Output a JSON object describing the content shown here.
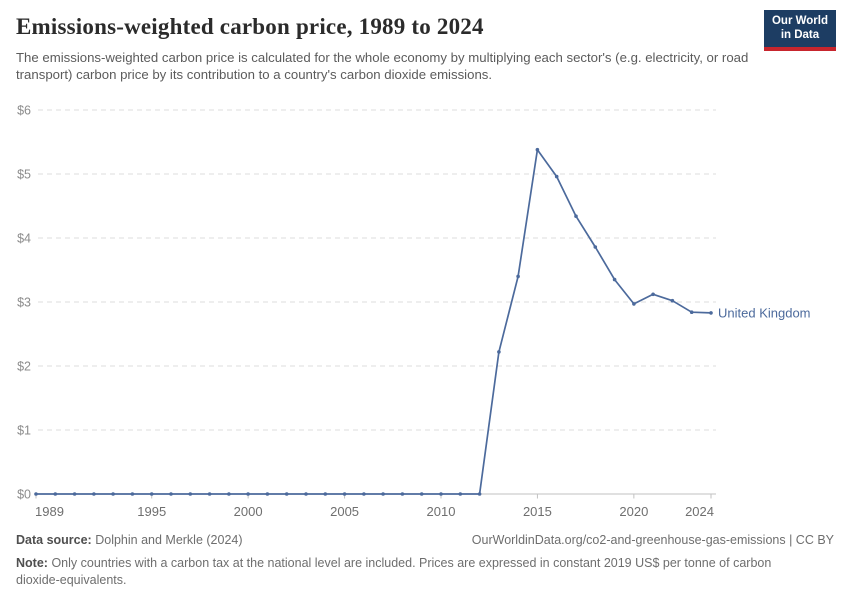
{
  "header": {
    "title": "Emissions-weighted carbon price, 1989 to 2024",
    "subtitle": "The emissions-weighted carbon price is calculated for the whole economy by multiplying each sector's (e.g. electricity, or road transport) carbon price by its contribution to a country's carbon dioxide emissions."
  },
  "logo": {
    "line1": "Our World",
    "line2": "in Data",
    "bg_color": "#1d3d63",
    "accent_color": "#c7252d"
  },
  "chart_data": {
    "type": "line",
    "title": "Emissions-weighted carbon price, 1989 to 2024",
    "xlabel": "",
    "ylabel": "",
    "xlim": [
      1989,
      2024
    ],
    "ylim": [
      0,
      6
    ],
    "grid": "horizontal-dashed",
    "legend_position": "end-of-line-label",
    "x": [
      1989,
      1990,
      1991,
      1992,
      1993,
      1994,
      1995,
      1996,
      1997,
      1998,
      1999,
      2000,
      2001,
      2002,
      2003,
      2004,
      2005,
      2006,
      2007,
      2008,
      2009,
      2010,
      2011,
      2012,
      2013,
      2014,
      2015,
      2016,
      2017,
      2018,
      2019,
      2020,
      2021,
      2022,
      2023,
      2024
    ],
    "series": [
      {
        "name": "United Kingdom",
        "color": "#4c6a9c",
        "values": [
          0,
          0,
          0,
          0,
          0,
          0,
          0,
          0,
          0,
          0,
          0,
          0,
          0,
          0,
          0,
          0,
          0,
          0,
          0,
          0,
          0,
          0,
          0,
          0,
          2.22,
          3.4,
          5.38,
          4.96,
          4.34,
          3.86,
          3.35,
          2.97,
          3.12,
          3.02,
          2.84,
          2.83
        ]
      }
    ],
    "xticks": [
      1989,
      1995,
      2000,
      2005,
      2010,
      2015,
      2020,
      2024
    ],
    "ytick_labels": [
      "$0",
      "$1",
      "$2",
      "$3",
      "$4",
      "$5",
      "$6"
    ],
    "grid_color": "#dedede",
    "axis_color": "#c2c2c2",
    "ytick_label_color": "#8c8c8c",
    "xtick_label_color": "#6f6f6f"
  },
  "footer": {
    "datasource_label": "Data source:",
    "datasource_value": "Dolphin and Merkle (2024)",
    "attribution": "OurWorldinData.org/co2-and-greenhouse-gas-emissions | CC BY",
    "note_label": "Note:",
    "note_text": "Only countries with a carbon tax at the national level are included. Prices are expressed in constant 2019 US$ per tonne of carbon dioxide-equivalents."
  }
}
